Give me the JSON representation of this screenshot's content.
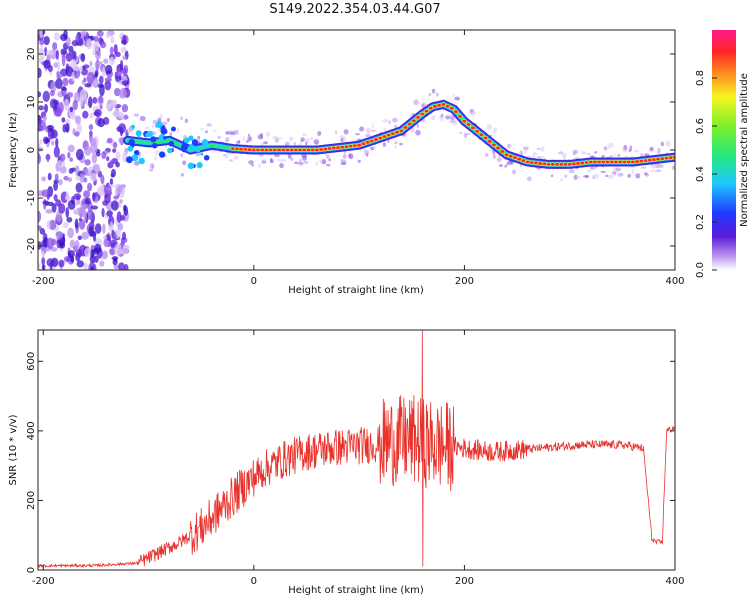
{
  "title": "S149.2022.354.03.44.G07",
  "chart_data": [
    {
      "type": "heatmap",
      "xlabel": "Height of straight line (km)",
      "ylabel": "Frequency (Hz)",
      "xlim": [
        -205,
        400
      ],
      "ylim": [
        -25,
        25
      ],
      "x_ticks": [
        "-200",
        "0",
        "200",
        "400"
      ],
      "y_ticks": [
        "-20",
        "-10",
        "0",
        "10",
        "20"
      ],
      "colorbar": {
        "label": "Normalized spectral amplitude",
        "range": [
          0,
          1
        ],
        "ticks": [
          "0.0",
          "0.2",
          "0.4",
          "0.6",
          "0.8"
        ]
      },
      "ridge": {
        "x": [
          -120,
          -100,
          -80,
          -60,
          -40,
          -20,
          0,
          20,
          40,
          60,
          80,
          100,
          120,
          140,
          160,
          170,
          180,
          190,
          200,
          220,
          240,
          260,
          280,
          300,
          320,
          340,
          360,
          380,
          400
        ],
        "y": [
          2,
          1.5,
          2,
          0,
          1,
          0.3,
          0,
          0,
          0,
          0,
          0.5,
          1,
          2.5,
          4,
          7.5,
          9,
          9.5,
          8.5,
          6,
          2.5,
          -1,
          -2.5,
          -3,
          -3,
          -2.5,
          -2.5,
          -2.5,
          -2,
          -1.5
        ]
      }
    },
    {
      "type": "line",
      "xlabel": "Height of straight line (km)",
      "ylabel": "SNR (10 * v/v)",
      "xlim": [
        -205,
        400
      ],
      "ylim": [
        0,
        690
      ],
      "x_ticks": [
        "-200",
        "0",
        "200",
        "400"
      ],
      "y_ticks": [
        "0",
        "200",
        "400",
        "600"
      ],
      "color": "#e8312b",
      "baseline": {
        "x": [
          -205,
          -150,
          -110,
          -90,
          -70,
          -50,
          -30,
          -10,
          10,
          30,
          50,
          70,
          90,
          110,
          130,
          150,
          170,
          190,
          210,
          230,
          250,
          270,
          290,
          310,
          330,
          350,
          370,
          378,
          382,
          388,
          392,
          400
        ],
        "y": [
          12,
          13,
          20,
          50,
          80,
          120,
          180,
          240,
          290,
          320,
          340,
          350,
          355,
          360,
          370,
          375,
          360,
          355,
          345,
          340,
          345,
          350,
          355,
          360,
          360,
          360,
          350,
          90,
          80,
          80,
          400,
          410
        ]
      },
      "peak": {
        "x": 160,
        "y": 690
      },
      "trough": {
        "x": 160,
        "y": 10
      }
    }
  ]
}
